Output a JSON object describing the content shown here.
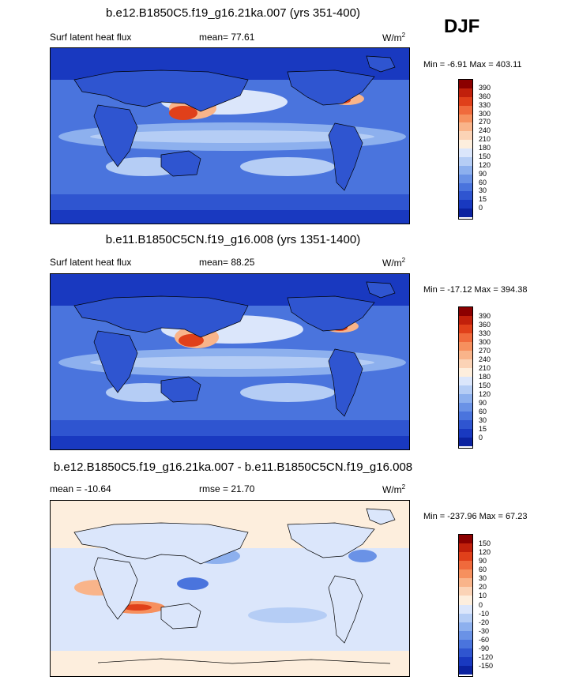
{
  "season": "DJF",
  "panels": [
    {
      "title": "b.e12.B1850C5.f19_g16.21ka.007 (yrs 351-400)",
      "field": "Surf latent heat flux",
      "mean_label": "mean=  77.61",
      "rmse_label": "",
      "units": "W/m",
      "units_sup": "2",
      "minmax": "Min =  -6.91 Max = 403.11",
      "colorbar_labels": [
        "390",
        "360",
        "330",
        "300",
        "270",
        "240",
        "210",
        "180",
        "150",
        "120",
        "90",
        "60",
        "30",
        "15",
        "0"
      ],
      "colorbar_colors": [
        "#8b0000",
        "#c1200b",
        "#e0401a",
        "#f06a3c",
        "#f6905e",
        "#f9b48a",
        "#fbd3b6",
        "#fdeedd",
        "#dbe6fb",
        "#b5cdf5",
        "#8db0ee",
        "#6a92e6",
        "#4a74dd",
        "#2f55d0",
        "#1939c0",
        "#0b22a0"
      ]
    },
    {
      "title": "b.e11.B1850C5CN.f19_g16.008 (yrs 1351-1400)",
      "field": "Surf latent heat flux",
      "mean_label": "mean=  88.25",
      "rmse_label": "",
      "units": "W/m",
      "units_sup": "2",
      "minmax": "Min = -17.12 Max = 394.38",
      "colorbar_labels": [
        "390",
        "360",
        "330",
        "300",
        "270",
        "240",
        "210",
        "180",
        "150",
        "120",
        "90",
        "60",
        "30",
        "15",
        "0"
      ],
      "colorbar_colors": [
        "#8b0000",
        "#c1200b",
        "#e0401a",
        "#f06a3c",
        "#f6905e",
        "#f9b48a",
        "#fbd3b6",
        "#fdeedd",
        "#dbe6fb",
        "#b5cdf5",
        "#8db0ee",
        "#6a92e6",
        "#4a74dd",
        "#2f55d0",
        "#1939c0",
        "#0b22a0"
      ]
    },
    {
      "title": "b.e12.B1850C5.f19_g16.21ka.007 - b.e11.B1850C5CN.f19_g16.008",
      "field": "",
      "mean_label": "mean = -10.64",
      "rmse_label": "rmse =  21.70",
      "units": "W/m",
      "units_sup": "2",
      "minmax": "Min = -237.96 Max =  67.23",
      "colorbar_labels": [
        "150",
        "120",
        "90",
        "60",
        "30",
        "20",
        "10",
        "0",
        "-10",
        "-20",
        "-30",
        "-60",
        "-90",
        "-120",
        "-150"
      ],
      "colorbar_colors": [
        "#8b0000",
        "#c1200b",
        "#e0401a",
        "#f06a3c",
        "#f6905e",
        "#f9b48a",
        "#fbd3b6",
        "#fdeedd",
        "#dbe6fb",
        "#b5cdf5",
        "#8db0ee",
        "#6a92e6",
        "#4a74dd",
        "#2f55d0",
        "#1939c0",
        "#0b22a0"
      ]
    }
  ]
}
